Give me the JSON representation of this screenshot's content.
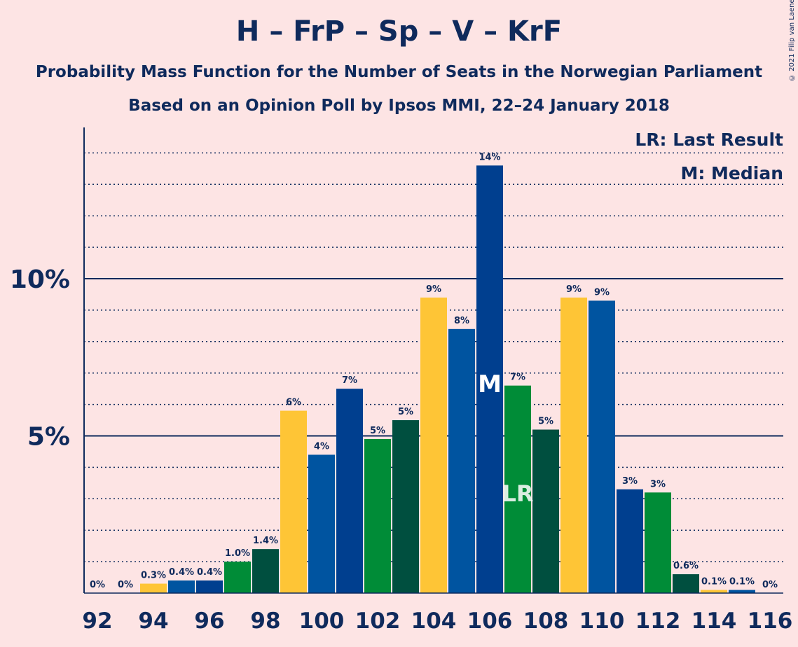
{
  "header": {
    "title": "H – FrP – Sp – V – KrF",
    "subtitle": "Probability Mass Function for the Number of Seats in the Norwegian Parliament",
    "subtitle2": "Based on an Opinion Poll by Ipsos MMI, 22–24 January 2018",
    "copyright": "© 2021 Filip van Laenen"
  },
  "legend": {
    "last_result": "LR: Last Result",
    "median": "M: Median"
  },
  "colors": {
    "background": "#fde4e4",
    "text": "#0f2a5c",
    "yellow": "#fec536",
    "blue": "#0054a0",
    "dark_blue": "#003f8f",
    "green": "#008c37",
    "dark_green": "#004f3f"
  },
  "chart_data": {
    "type": "bar",
    "x": [
      92,
      93,
      94,
      95,
      96,
      97,
      98,
      99,
      100,
      101,
      102,
      103,
      104,
      105,
      106,
      107,
      108,
      109,
      110,
      111,
      112,
      113,
      114,
      115,
      116
    ],
    "values": [
      0,
      0,
      0.3,
      0.4,
      0.4,
      1.0,
      1.4,
      5.8,
      4.4,
      6.5,
      4.9,
      5.5,
      9.4,
      8.4,
      13.6,
      6.6,
      5.2,
      9.4,
      9.3,
      3.3,
      3.2,
      0.6,
      0.1,
      0.1,
      0
    ],
    "labels": [
      "0%",
      "0%",
      "0.3%",
      "0.4%",
      "0.4%",
      "1.0%",
      "1.4%",
      "6%",
      "4%",
      "7%",
      "5%",
      "5%",
      "9%",
      "8%",
      "14%",
      "7%",
      "5%",
      "9%",
      "9%",
      "3%",
      "3%",
      "0.6%",
      "0.1%",
      "0.1%",
      "0%"
    ],
    "bar_colors": [
      "yellow",
      "blue",
      "yellow",
      "blue",
      "dark_blue",
      "green",
      "dark_green",
      "yellow",
      "blue",
      "dark_blue",
      "green",
      "dark_green",
      "yellow",
      "blue",
      "dark_blue",
      "green",
      "dark_green",
      "yellow",
      "blue",
      "dark_blue",
      "green",
      "dark_green",
      "yellow",
      "blue",
      "dark_blue"
    ],
    "x_tick_labels": [
      "92",
      "94",
      "96",
      "98",
      "100",
      "102",
      "104",
      "106",
      "108",
      "110",
      "112",
      "114",
      "116"
    ],
    "y_tick_labels": [
      "5%",
      "10%"
    ],
    "y_ticks": [
      5,
      10
    ],
    "ylim": [
      0,
      14.8
    ],
    "grid": "dotted horizontal lines every 1%, solid at 5% and 10%",
    "median_seat": 106,
    "median_marker": "M",
    "last_result_seat": 107,
    "last_result_marker": "LR",
    "legend_position": "top-right"
  }
}
